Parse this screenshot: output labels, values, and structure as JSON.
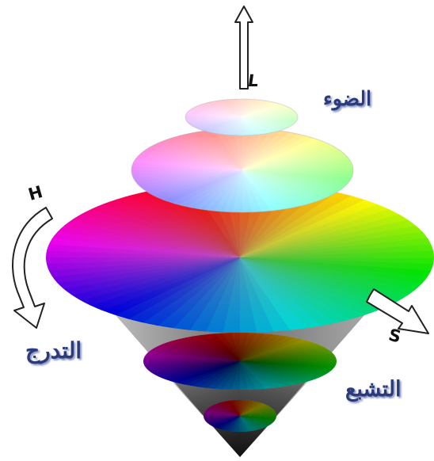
{
  "axes": {
    "lightness": {
      "letter": "L",
      "label": "الضوء"
    },
    "hue": {
      "letter": "H",
      "label": "التدرج"
    },
    "saturation": {
      "letter": "S",
      "label": "التشبع"
    }
  },
  "colors": {
    "background": "#ffffff",
    "label_text": "#2a3a7a",
    "arrow_fill": "#ffffff",
    "arrow_stroke": "#222222",
    "cone_shade": "#6e6e6e"
  }
}
